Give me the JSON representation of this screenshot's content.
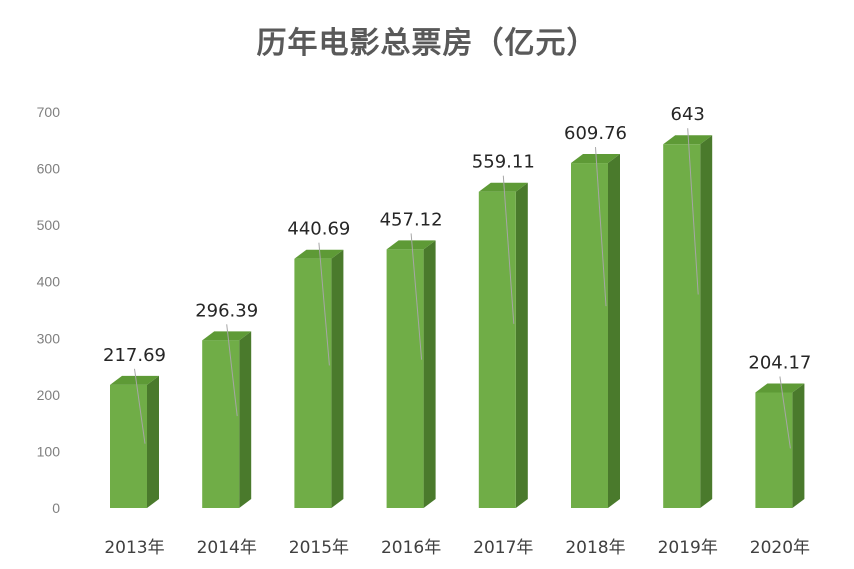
{
  "chart_data": {
    "type": "bar",
    "title": "历年电影总票房（亿元）",
    "categories": [
      "2013年",
      "2014年",
      "2015年",
      "2016年",
      "2017年",
      "2018年",
      "2019年",
      "2020年"
    ],
    "values": [
      217.69,
      296.39,
      440.69,
      457.12,
      559.11,
      609.76,
      643,
      204.17
    ],
    "value_labels": [
      "217.69",
      "296.39",
      "440.69",
      "457.12",
      "559.11",
      "609.76",
      "643",
      "204.17"
    ],
    "y_ticks": [
      "0",
      "100",
      "200",
      "300",
      "400",
      "500",
      "600",
      "700"
    ],
    "ylim": [
      0,
      700
    ],
    "xlabel": "",
    "ylabel": "",
    "grid": false,
    "legend": "none",
    "style": "3d-column",
    "colors": {
      "front": "#70ad47",
      "side": "#4a7a2c",
      "top": "#5e9a36",
      "leader": "#a6a6a6"
    }
  }
}
